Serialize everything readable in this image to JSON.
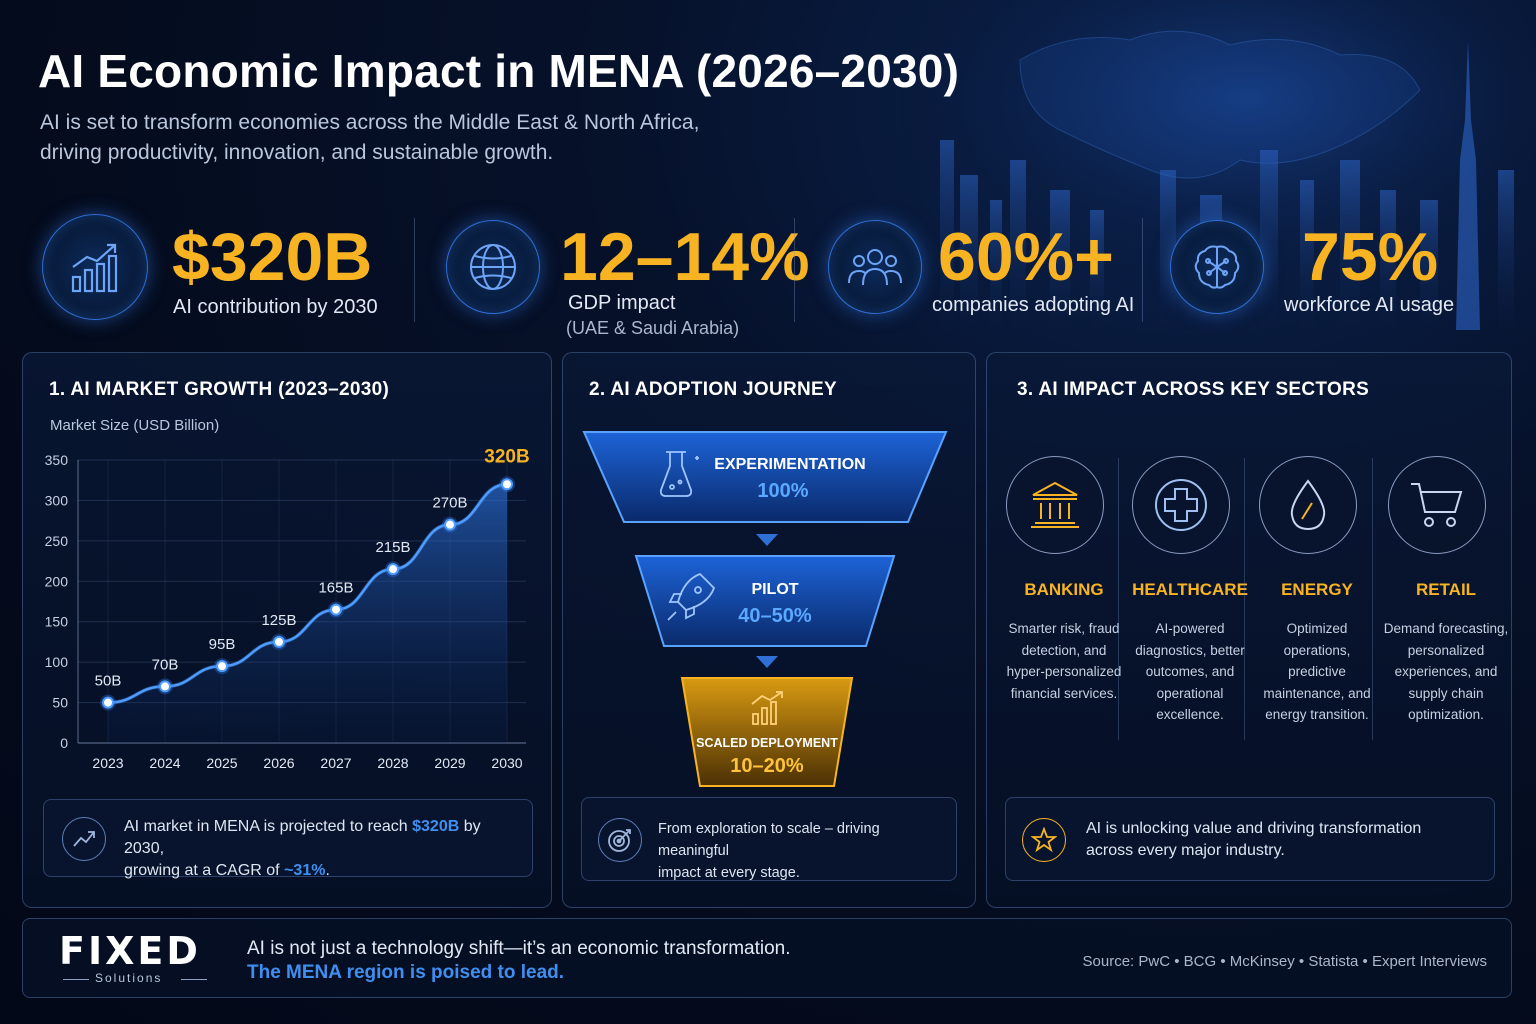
{
  "header": {
    "title": "AI Economic Impact in MENA (2026–2030)",
    "subtitle_line1": "AI is set to transform economies across the Middle East & North Africa,",
    "subtitle_line2": "driving productivity, innovation, and sustainable growth."
  },
  "kpis": [
    {
      "value": "$320B",
      "label": "AI contribution by 2030",
      "sub": "",
      "icon": "growth-chart-icon"
    },
    {
      "value": "12–14%",
      "label": "GDP impact",
      "sub": "(UAE & Saudi Arabia)",
      "icon": "globe-icon"
    },
    {
      "value": "60%+",
      "label": "companies adopting AI",
      "sub": "",
      "icon": "people-icon"
    },
    {
      "value": "75%",
      "label": "workforce AI usage",
      "sub": "",
      "icon": "brain-icon"
    }
  ],
  "panel1": {
    "title": "1. AI MARKET GROWTH (2023–2030)",
    "ylabel": "Market Size (USD Billion)",
    "note_pre": "AI market in MENA is projected to reach ",
    "note_highlight": "$320B",
    "note_mid": " by 2030,",
    "note_line2_pre": "growing at a CAGR of ",
    "note_line2_highlight": "~31%",
    "note_line2_post": "."
  },
  "chart_data": {
    "type": "area",
    "categories": [
      "2023",
      "2024",
      "2025",
      "2026",
      "2027",
      "2028",
      "2029",
      "2030"
    ],
    "values": [
      50,
      70,
      95,
      125,
      165,
      215,
      270,
      320
    ],
    "data_labels": [
      "50B",
      "70B",
      "95B",
      "125B",
      "165B",
      "215B",
      "270B",
      "320B"
    ],
    "ylabel": "Market Size (USD Billion)",
    "ylim": [
      0,
      350
    ],
    "yticks": [
      0,
      50,
      100,
      150,
      200,
      250,
      300,
      350
    ],
    "grid": true,
    "line_color": "#3f8ff0",
    "highlight_color": "#f7b322"
  },
  "panel2": {
    "title": "2. AI ADOPTION JOURNEY",
    "stages": [
      {
        "label": "EXPERIMENTATION",
        "value": "100%",
        "icon": "flask-icon"
      },
      {
        "label": "PILOT",
        "value": "40–50%",
        "icon": "rocket-icon"
      },
      {
        "label": "SCALED DEPLOYMENT",
        "value": "10–20%",
        "icon": "bar-growth-icon"
      }
    ],
    "note_line1": "From exploration to scale – driving meaningful",
    "note_line2": "impact at every stage."
  },
  "panel3": {
    "title": "3. AI IMPACT ACROSS KEY SECTORS",
    "sectors": [
      {
        "name": "BANKING",
        "icon": "bank-icon",
        "lines": [
          "Smarter risk, fraud",
          "detection, and",
          "hyper-personalized",
          "financial services."
        ]
      },
      {
        "name": "HEALTHCARE",
        "icon": "medical-cross-icon",
        "lines": [
          "AI-powered",
          "diagnostics, better",
          "outcomes, and",
          "operational",
          "excellence."
        ]
      },
      {
        "name": "ENERGY",
        "icon": "drop-icon",
        "lines": [
          "Optimized",
          "operations,",
          "predictive",
          "maintenance, and",
          "energy transition."
        ]
      },
      {
        "name": "RETAIL",
        "icon": "cart-icon",
        "lines": [
          "Demand forecasting,",
          "personalized",
          "experiences, and",
          "supply chain",
          "optimization."
        ]
      }
    ],
    "note_line1": "AI is unlocking value and driving transformation",
    "note_line2": "across every major industry."
  },
  "footer": {
    "logo": "FIXED",
    "logo_sub": "Solutions",
    "line1": "AI is not just a technology shift—it’s an economic transformation.",
    "line2": "The MENA region is poised to lead.",
    "source": "Source: PwC  •  BCG  •  McKinsey  •  Statista  •  Expert Interviews"
  },
  "colors": {
    "accent_gold": "#f7b322",
    "accent_blue": "#3f8ff0",
    "background": "#040b1c"
  }
}
